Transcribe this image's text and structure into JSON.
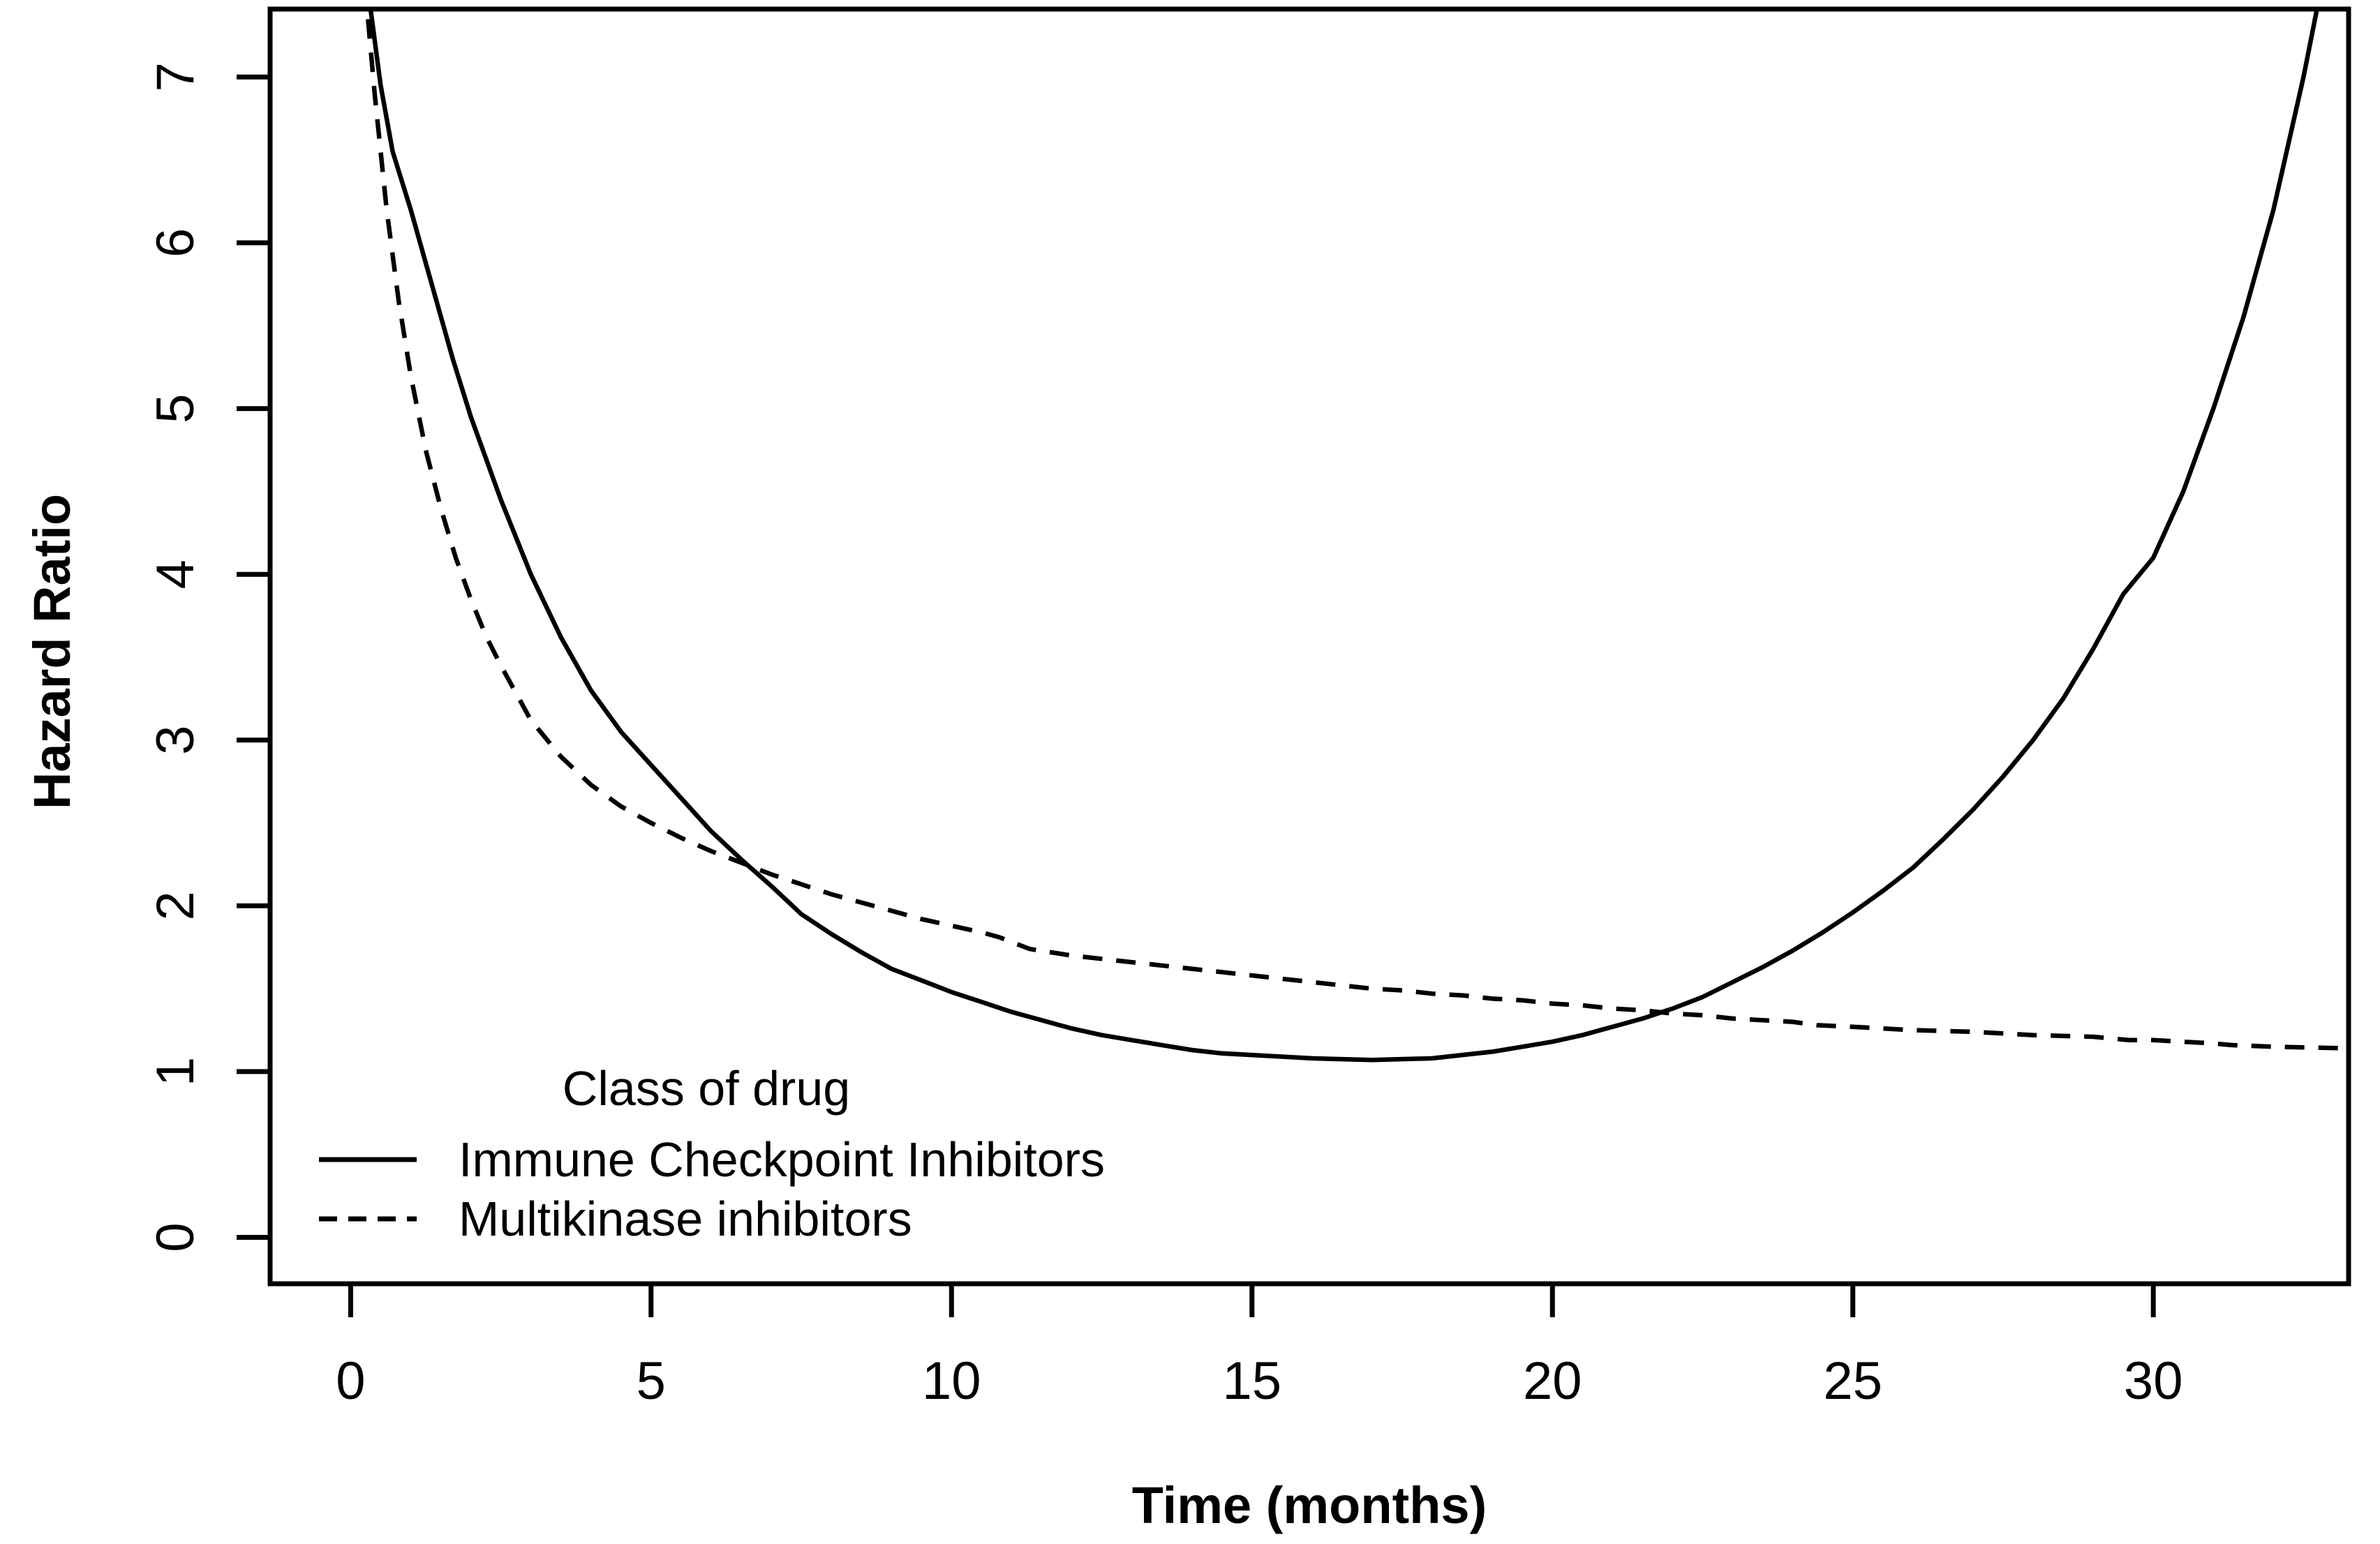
{
  "chart_data": {
    "type": "line",
    "title": "",
    "xlabel": "Time (months)",
    "ylabel": "Hazard Ratio",
    "x_ticks": [
      0,
      5,
      10,
      15,
      20,
      25,
      30
    ],
    "y_ticks": [
      0,
      1,
      2,
      3,
      4,
      5,
      6,
      7
    ],
    "xlim": [
      -1.34,
      33.25
    ],
    "ylim": [
      -0.28,
      7.41
    ],
    "grid": false,
    "line_color": "#000000",
    "background_color": "#ffffff",
    "legend": {
      "title": "Class of drug",
      "position": "inside-bottom-left",
      "entries": [
        {
          "label": "Immune Checkpoint Inhibitors",
          "line_style": "solid"
        },
        {
          "label": "Multikinase inhibitors",
          "line_style": "dashed"
        }
      ]
    },
    "series": [
      {
        "name": "Immune Checkpoint Inhibitors",
        "style": "solid",
        "color": "#000000",
        "points": [
          [
            0.28,
            7.55
          ],
          [
            0.5,
            6.95
          ],
          [
            0.7,
            6.55
          ],
          [
            1,
            6.2
          ],
          [
            1.35,
            5.75
          ],
          [
            1.7,
            5.3
          ],
          [
            2,
            4.95
          ],
          [
            2.5,
            4.45
          ],
          [
            3,
            4.0
          ],
          [
            3.5,
            3.62
          ],
          [
            4,
            3.3
          ],
          [
            4.5,
            3.05
          ],
          [
            5,
            2.85
          ],
          [
            5.5,
            2.65
          ],
          [
            6,
            2.45
          ],
          [
            6.5,
            2.28
          ],
          [
            7,
            2.12
          ],
          [
            7.5,
            1.95
          ],
          [
            8,
            1.83
          ],
          [
            8.5,
            1.72
          ],
          [
            9,
            1.62
          ],
          [
            9.5,
            1.55
          ],
          [
            10,
            1.48
          ],
          [
            10.5,
            1.42
          ],
          [
            11,
            1.36
          ],
          [
            11.5,
            1.31
          ],
          [
            12,
            1.26
          ],
          [
            12.5,
            1.22
          ],
          [
            13,
            1.19
          ],
          [
            13.5,
            1.16
          ],
          [
            14,
            1.13
          ],
          [
            14.5,
            1.11
          ],
          [
            15,
            1.1
          ],
          [
            16,
            1.08
          ],
          [
            17,
            1.07
          ],
          [
            18,
            1.08
          ],
          [
            18.5,
            1.1
          ],
          [
            19,
            1.12
          ],
          [
            19.5,
            1.15
          ],
          [
            20,
            1.18
          ],
          [
            20.5,
            1.22
          ],
          [
            21,
            1.27
          ],
          [
            21.5,
            1.32
          ],
          [
            22,
            1.38
          ],
          [
            22.5,
            1.45
          ],
          [
            23,
            1.54
          ],
          [
            23.5,
            1.63
          ],
          [
            24,
            1.73
          ],
          [
            24.5,
            1.84
          ],
          [
            25,
            1.96
          ],
          [
            25.5,
            2.09
          ],
          [
            26,
            2.23
          ],
          [
            26.5,
            2.4
          ],
          [
            27,
            2.58
          ],
          [
            27.5,
            2.78
          ],
          [
            28,
            3.0
          ],
          [
            28.5,
            3.25
          ],
          [
            29,
            3.55
          ],
          [
            29.5,
            3.88
          ],
          [
            30,
            4.1
          ],
          [
            30.5,
            4.5
          ],
          [
            31,
            5.0
          ],
          [
            31.5,
            5.55
          ],
          [
            32,
            6.2
          ],
          [
            32.5,
            7.0
          ],
          [
            32.8,
            7.55
          ]
        ]
      },
      {
        "name": "Multikinase inhibitors",
        "style": "dashed",
        "color": "#000000",
        "points": [
          [
            0.24,
            7.55
          ],
          [
            0.4,
            6.9
          ],
          [
            0.6,
            6.2
          ],
          [
            0.8,
            5.65
          ],
          [
            1,
            5.2
          ],
          [
            1.25,
            4.75
          ],
          [
            1.5,
            4.4
          ],
          [
            1.75,
            4.1
          ],
          [
            2,
            3.85
          ],
          [
            2.25,
            3.63
          ],
          [
            2.5,
            3.45
          ],
          [
            3,
            3.12
          ],
          [
            3.5,
            2.9
          ],
          [
            4,
            2.73
          ],
          [
            4.5,
            2.6
          ],
          [
            5,
            2.5
          ],
          [
            5.5,
            2.41
          ],
          [
            6,
            2.33
          ],
          [
            6.5,
            2.26
          ],
          [
            7,
            2.19
          ],
          [
            7.5,
            2.13
          ],
          [
            8,
            2.07
          ],
          [
            8.5,
            2.02
          ],
          [
            9,
            1.97
          ],
          [
            9.5,
            1.92
          ],
          [
            10,
            1.88
          ],
          [
            10.5,
            1.84
          ],
          [
            10.8,
            1.81
          ],
          [
            11.3,
            1.74
          ],
          [
            12,
            1.7
          ],
          [
            12.5,
            1.68
          ],
          [
            13,
            1.66
          ],
          [
            13.5,
            1.64
          ],
          [
            14,
            1.62
          ],
          [
            14.5,
            1.6
          ],
          [
            15,
            1.58
          ],
          [
            15.5,
            1.56
          ],
          [
            16,
            1.54
          ],
          [
            16.5,
            1.52
          ],
          [
            17,
            1.5
          ],
          [
            17.5,
            1.49
          ],
          [
            18,
            1.47
          ],
          [
            18.5,
            1.46
          ],
          [
            19,
            1.44
          ],
          [
            19.5,
            1.43
          ],
          [
            20,
            1.41
          ],
          [
            20.5,
            1.4
          ],
          [
            21,
            1.38
          ],
          [
            21.5,
            1.37
          ],
          [
            22,
            1.35
          ],
          [
            22.5,
            1.34
          ],
          [
            23,
            1.32
          ],
          [
            23.5,
            1.31
          ],
          [
            24,
            1.3
          ],
          [
            24.4,
            1.28
          ],
          [
            25,
            1.27
          ],
          [
            26,
            1.25
          ],
          [
            27,
            1.24
          ],
          [
            28,
            1.22
          ],
          [
            29,
            1.21
          ],
          [
            29.6,
            1.19
          ],
          [
            30,
            1.19
          ],
          [
            31,
            1.17
          ],
          [
            31.3,
            1.16
          ],
          [
            32,
            1.15
          ],
          [
            33.25,
            1.14
          ]
        ]
      }
    ]
  }
}
